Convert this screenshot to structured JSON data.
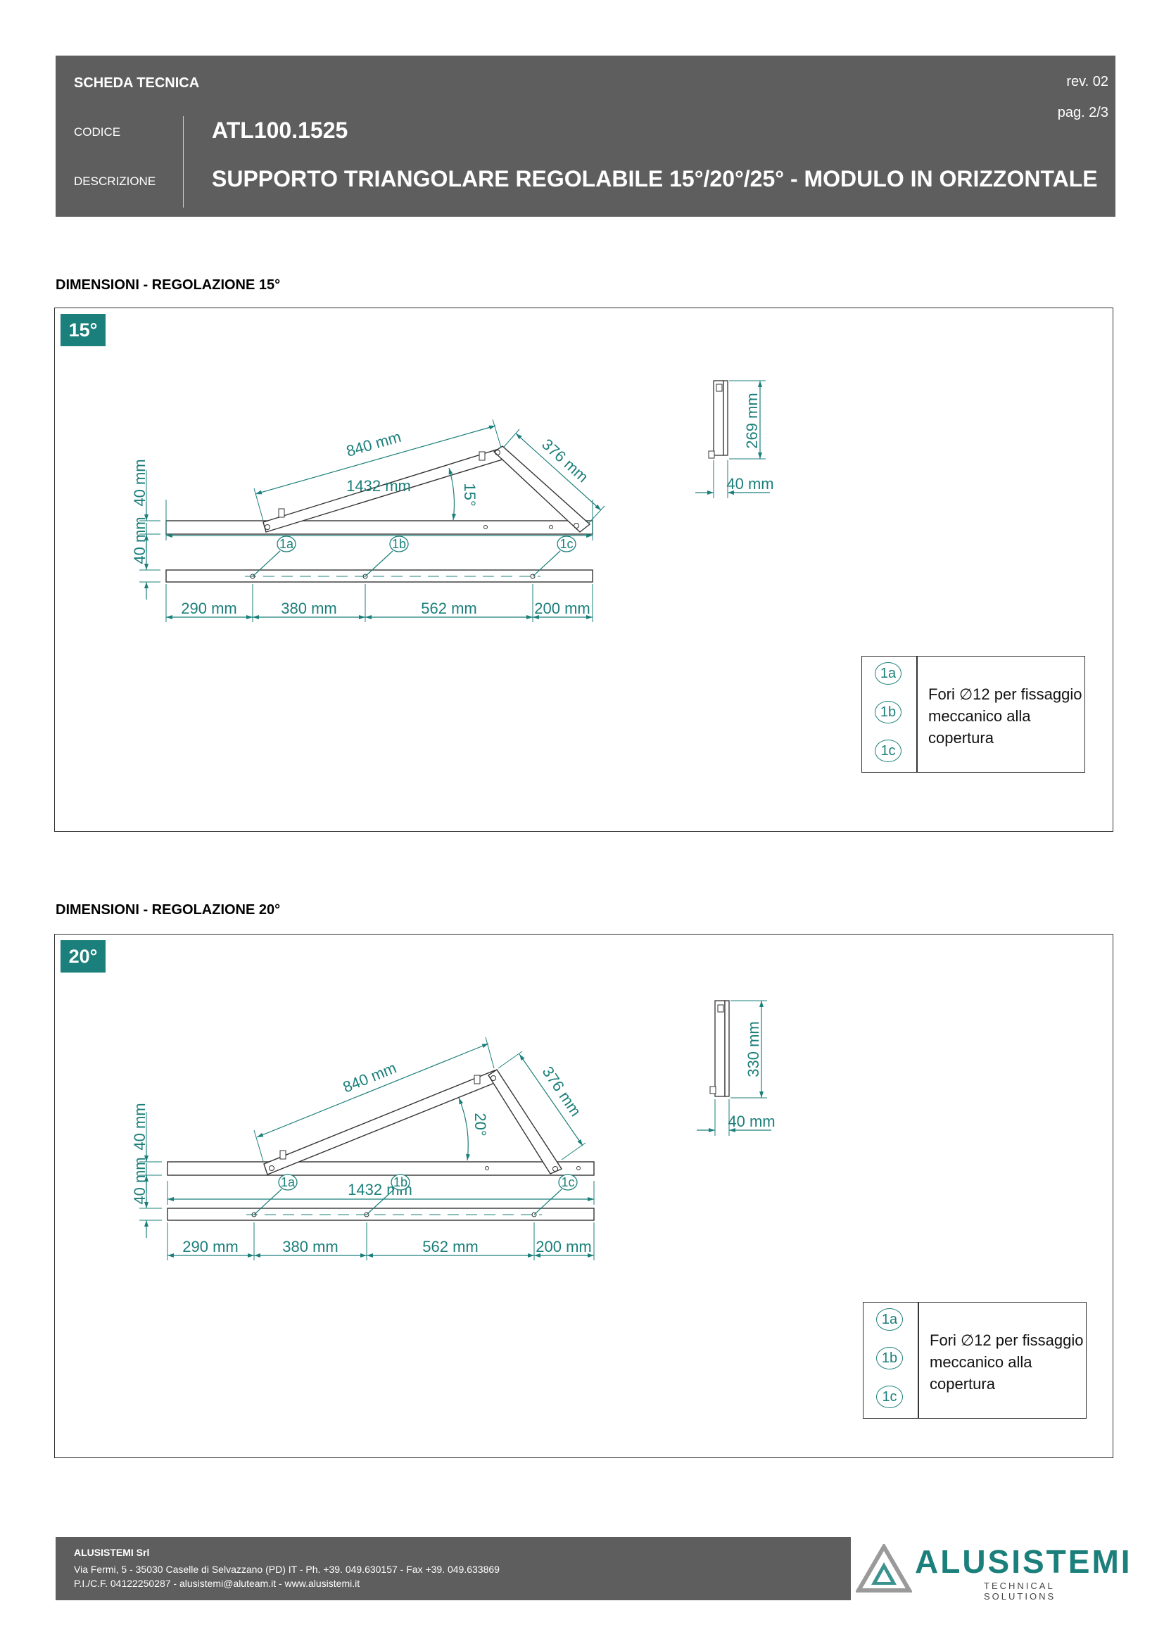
{
  "header": {
    "sheet_title": "SCHEDA TECNICA",
    "revision": "rev. 02",
    "page": "pag. 2/3",
    "code_label": "CODICE",
    "code_value": "ATL100.1525",
    "description_label": "DESCRIZIONE",
    "description_value": "SUPPORTO TRIANGOLARE REGOLABILE 15°/20°/25° - MODULO IN ORIZZONTALE"
  },
  "colors": {
    "accent": "#1b7f7b",
    "header_bg": "#5e5e5e",
    "line": "#333333"
  },
  "sections": [
    {
      "title": "DIMENSIONI - REGOLAZIONE 15°",
      "badge": "15°",
      "angle_label": "15°",
      "diagonal_length": "840 mm",
      "rear_leg_length": "376 mm",
      "base_length": "1432  mm",
      "profile_height": "40 mm",
      "side_height": "269 mm",
      "side_width": "40 mm",
      "hole_spacings": [
        "290 mm",
        "380 mm",
        "562 mm",
        "200 mm"
      ],
      "hole_tags": [
        "1a",
        "1b",
        "1c"
      ],
      "legend_text": "Fori ∅12 per fissaggio meccanico alla copertura"
    },
    {
      "title": "DIMENSIONI - REGOLAZIONE 20°",
      "badge": "20°",
      "angle_label": "20°",
      "diagonal_length": "840 mm",
      "rear_leg_length": "376 mm",
      "base_length": "1432  mm",
      "profile_height": "40 mm",
      "side_height": "330 mm",
      "side_width": "40 mm",
      "hole_spacings": [
        "290 mm",
        "380 mm",
        "562 mm",
        "200 mm"
      ],
      "hole_tags": [
        "1a",
        "1b",
        "1c"
      ],
      "legend_text": "Fori ∅12 per fissaggio meccanico alla copertura"
    }
  ],
  "footer": {
    "company": "ALUSISTEMI Srl",
    "address": "Via Fermi, 5 - 35030 Caselle di Selvazzano (PD) IT  -  Ph. +39. 049.630157  -  Fax +39. 049.633869",
    "vat": "P.I./C.F. 04122250287  - alusistemi@aluteam.it  -  www.alusistemi.it"
  },
  "logo": {
    "name": "ALUSISTEMI",
    "tagline": "TECHNICAL SOLUTIONS"
  }
}
